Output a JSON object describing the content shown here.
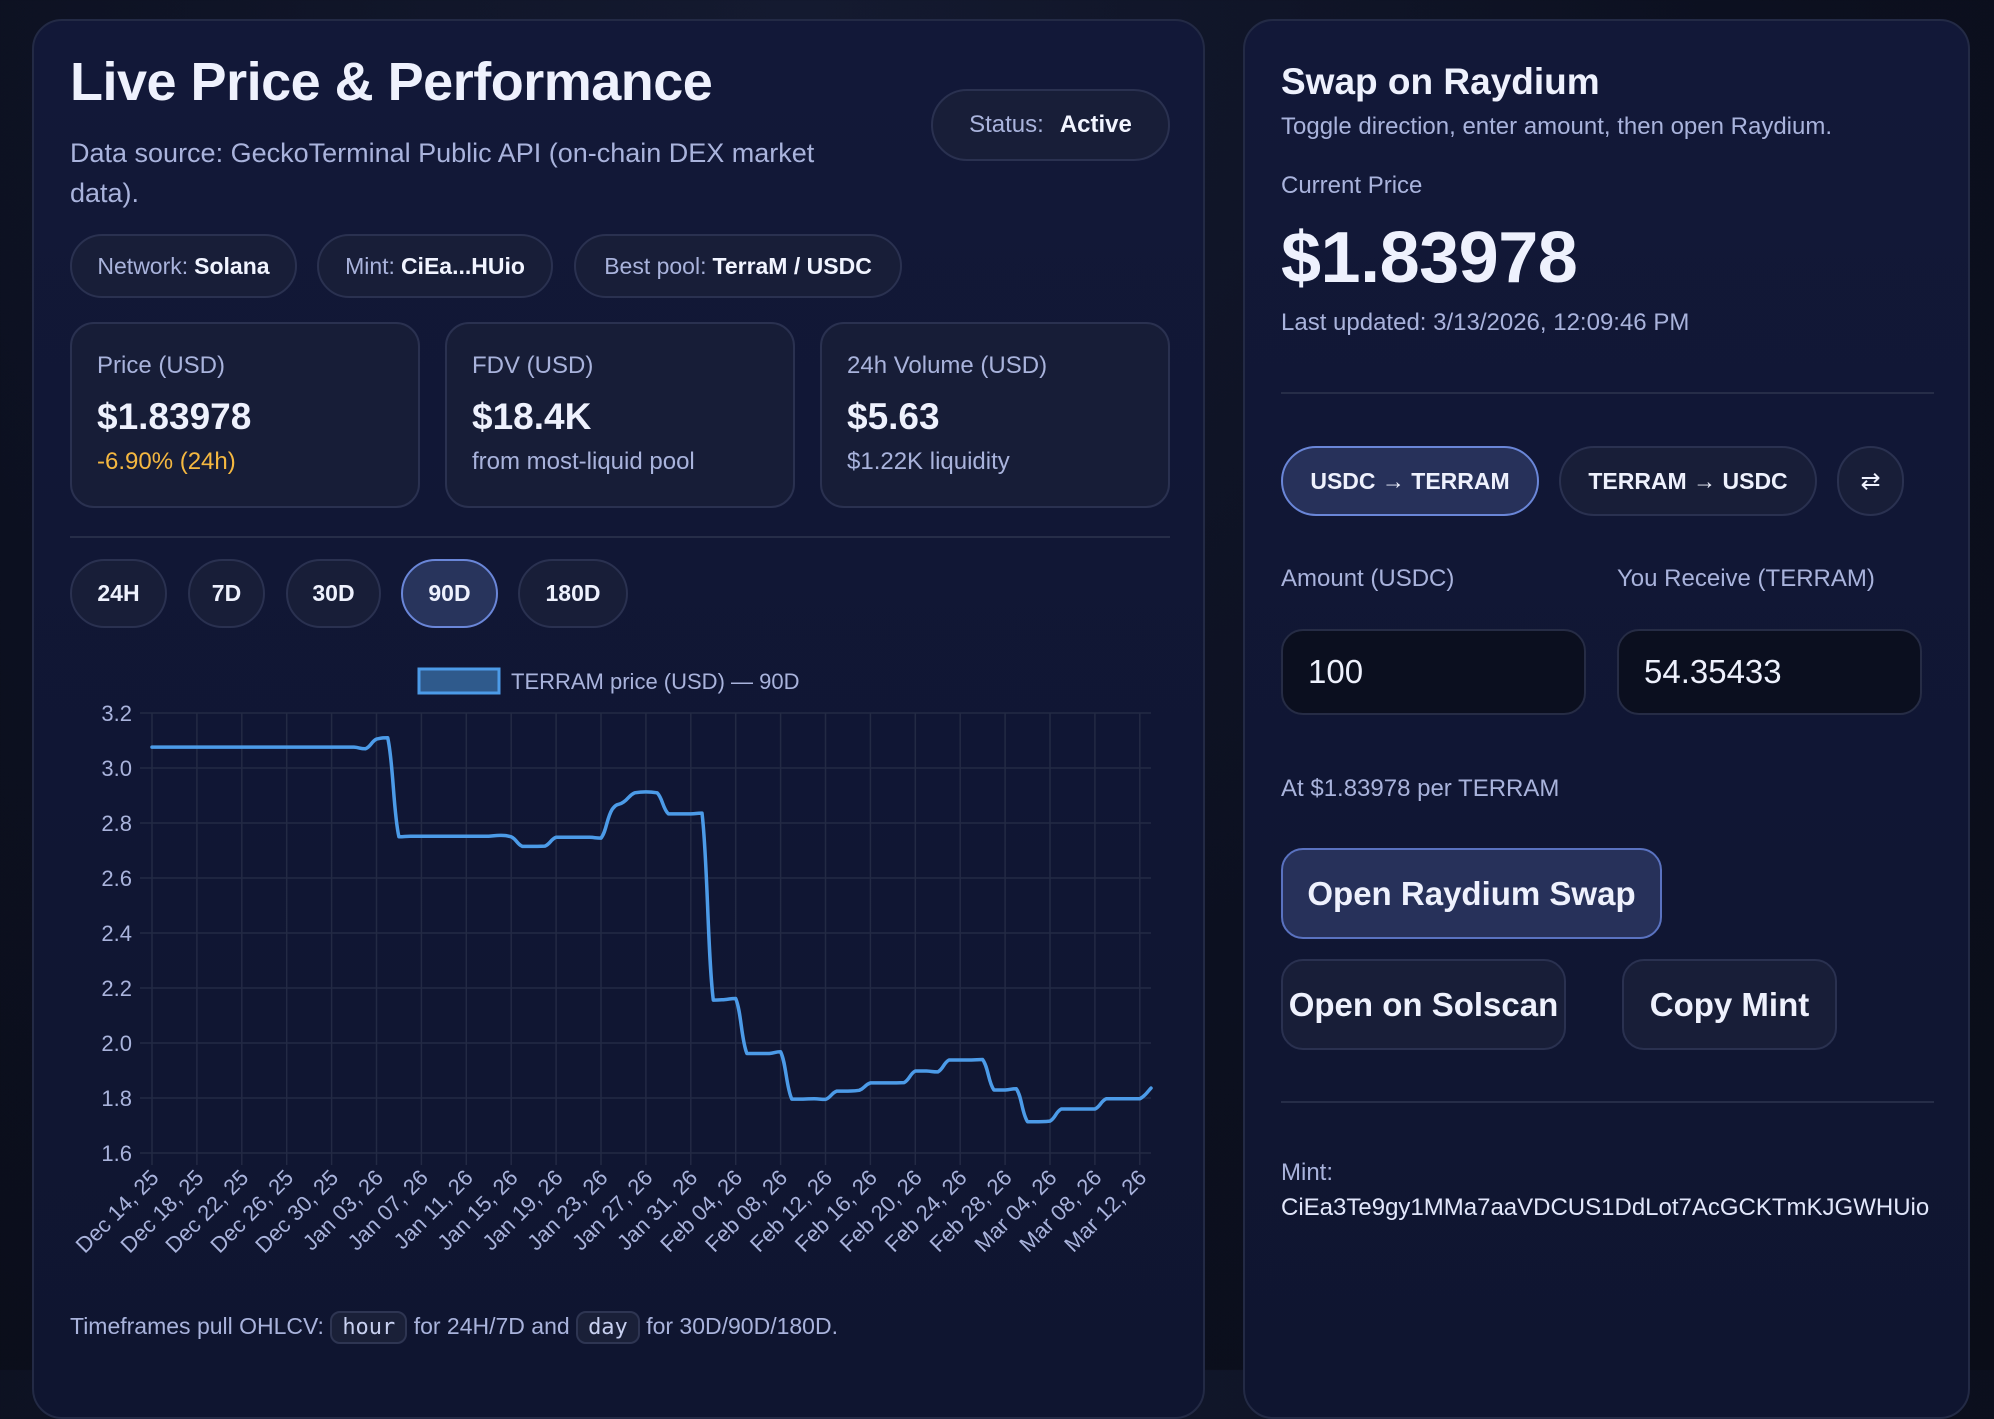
{
  "left": {
    "title": "Live Price & Performance",
    "subtitle_line1": "Data source: GeckoTerminal Public API (on-chain DEX market",
    "subtitle_line2": "data).",
    "status": {
      "label": "Status:",
      "value": "Active"
    },
    "chips": [
      {
        "label": "Network:",
        "value": "Solana"
      },
      {
        "label": "Mint:",
        "value": "CiEa...HUio"
      },
      {
        "label": "Best pool:",
        "value": "TerraM / USDC"
      }
    ],
    "cards": [
      {
        "label": "Price (USD)",
        "value": "$1.83978",
        "sub": "-6.90% (24h)"
      },
      {
        "label": "FDV (USD)",
        "value": "$18.4K",
        "sub": "from most-liquid pool"
      },
      {
        "label": "24h Volume (USD)",
        "value": "$5.63",
        "sub": "$1.22K liquidity"
      }
    ],
    "timeframes": [
      "24H",
      "7D",
      "30D",
      "90D",
      "180D"
    ],
    "active_timeframe": "90D",
    "footer": {
      "prefix": "Timeframes pull OHLCV:",
      "code1": "hour",
      "mid": "for 24H/7D and",
      "code2": "day",
      "suffix": "for 30D/90D/180D."
    }
  },
  "right": {
    "title": "Swap on Raydium",
    "subtitle": "Toggle direction, enter amount, then open Raydium.",
    "current_price_label": "Current Price",
    "current_price": "$1.83978",
    "last_updated": "Last updated: 3/13/2026, 12:09:46 PM",
    "directions": [
      "USDC → TERRAM",
      "TERRAM → USDC"
    ],
    "active_direction": "USDC → TERRAM",
    "swap_icon": "⇄",
    "amount_label": "Amount (USDC)",
    "amount_value": "100",
    "receive_label": "You Receive (TERRAM)",
    "receive_value": "54.35433",
    "rate_text": "At $1.83978 per TERRAM",
    "buttons": {
      "raydium": "Open Raydium Swap",
      "solscan": "Open on Solscan",
      "copy": "Copy Mint"
    },
    "mint_label": "Mint:",
    "mint_address": "CiEa3Te9gy1MMa7aaVDCUS1DdLot7AcGCKTmKJGWHUio"
  },
  "colors": {
    "line": "#4c9be8",
    "legend_fill": "#2f5a8c",
    "accent_border": "#6a86d8",
    "warn": "#f5b840"
  },
  "chart_data": {
    "type": "line",
    "title": "",
    "legend": "TERRAM price (USD) — 90D",
    "legend_position": "top",
    "xlabel": "",
    "ylabel": "",
    "ylim": [
      1.6,
      3.2
    ],
    "yticks": [
      "3.2",
      "3.0",
      "2.8",
      "2.6",
      "2.4",
      "2.2",
      "2.0",
      "1.8",
      "1.6"
    ],
    "xticks": [
      "Dec 14, 25",
      "Dec 18, 25",
      "Dec 22, 25",
      "Dec 26, 25",
      "Dec 30, 25",
      "Jan 03, 26",
      "Jan 07, 26",
      "Jan 11, 26",
      "Jan 15, 26",
      "Jan 19, 26",
      "Jan 23, 26",
      "Jan 27, 26",
      "Jan 31, 26",
      "Feb 04, 26",
      "Feb 08, 26",
      "Feb 12, 26",
      "Feb 16, 26",
      "Feb 20, 26",
      "Feb 24, 26",
      "Feb 28, 26",
      "Mar 04, 26",
      "Mar 08, 26",
      "Mar 12, 26"
    ],
    "grid": true,
    "x_start": "Dec 14, 25",
    "x_step_days": 1,
    "series": [
      {
        "name": "TERRAM price (USD) — 90D",
        "values": [
          3.076,
          3.076,
          3.076,
          3.076,
          3.076,
          3.076,
          3.076,
          3.076,
          3.076,
          3.076,
          3.076,
          3.076,
          3.076,
          3.076,
          3.076,
          3.076,
          3.076,
          3.076,
          3.076,
          3.07,
          3.105,
          3.11,
          2.75,
          2.752,
          2.752,
          2.752,
          2.752,
          2.752,
          2.752,
          2.752,
          2.752,
          2.755,
          2.75,
          2.715,
          2.715,
          2.716,
          2.748,
          2.748,
          2.748,
          2.748,
          2.745,
          2.85,
          2.876,
          2.91,
          2.913,
          2.91,
          2.833,
          2.833,
          2.833,
          2.836,
          2.156,
          2.158,
          2.162,
          1.962,
          1.962,
          1.962,
          1.968,
          1.796,
          1.796,
          1.797,
          1.795,
          1.825,
          1.825,
          1.828,
          1.855,
          1.855,
          1.855,
          1.856,
          1.898,
          1.898,
          1.895,
          1.938,
          1.938,
          1.938,
          1.94,
          1.829,
          1.829,
          1.834,
          1.714,
          1.714,
          1.716,
          1.76,
          1.76,
          1.76,
          1.76,
          1.797,
          1.797,
          1.797,
          1.797,
          1.836
        ]
      }
    ]
  }
}
